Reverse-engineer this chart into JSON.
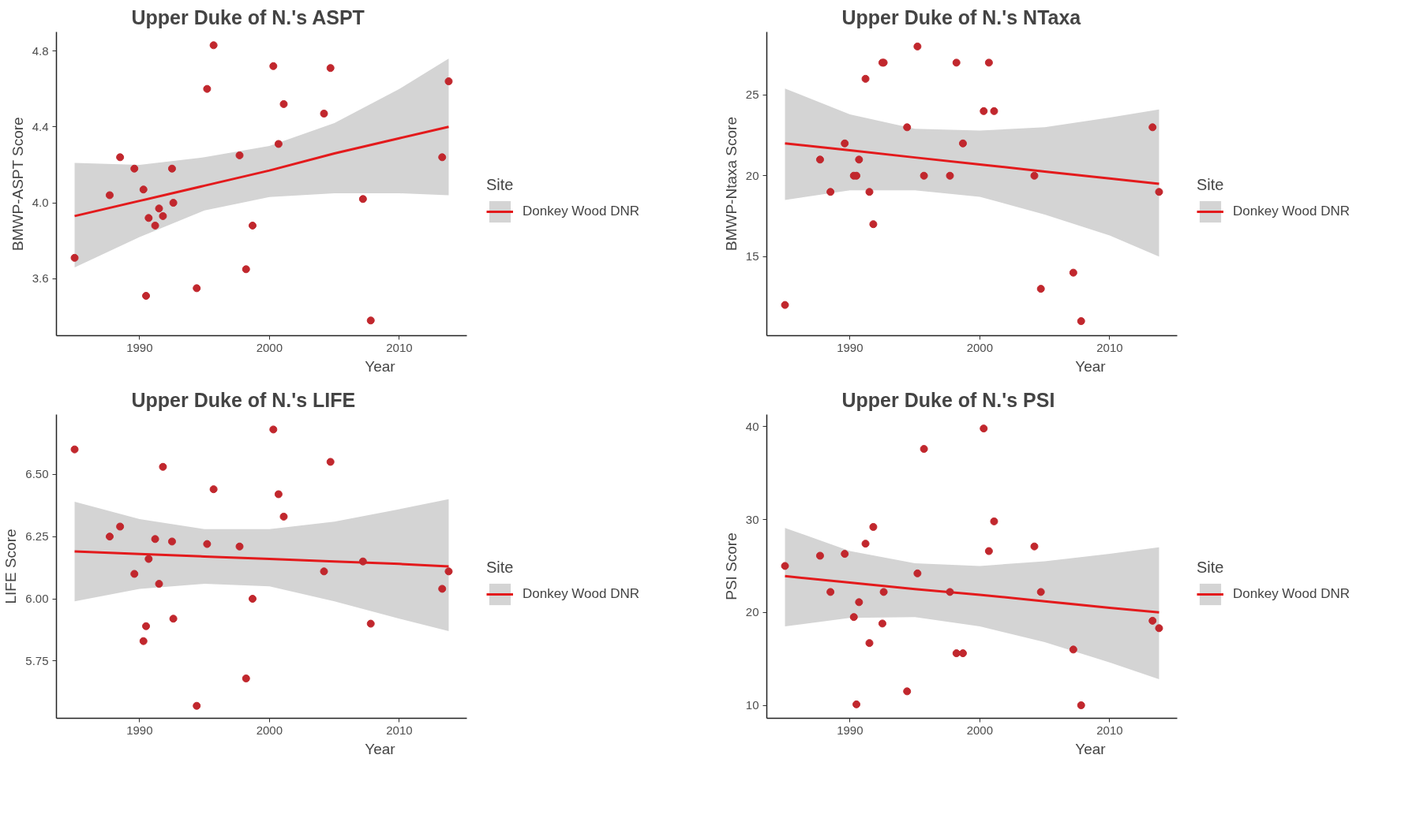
{
  "chart_data": [
    {
      "type": "scatter",
      "title": "Upper Duke of N.'s ASPT",
      "xlabel": "Year",
      "ylabel": "BMWP-ASPT Score",
      "legend_title": "Site",
      "legend": "right",
      "xlim": [
        1983.6,
        2015.2
      ],
      "xticks": [
        1990,
        2000,
        2010
      ],
      "ylim": [
        3.3,
        4.9
      ],
      "yticks": [
        3.6,
        {
          "value": 4.0,
          "label": "4.0"
        },
        4.4,
        4.8
      ],
      "series": [
        {
          "marker": "circle",
          "color": "#c1272d",
          "x": [
            1985.0,
            1987.7,
            1988.5,
            1989.6,
            1990.3,
            1990.5,
            1990.7,
            1991.2,
            1991.5,
            1991.8,
            1992.5,
            1992.6,
            1994.4,
            1995.2,
            1995.7,
            1997.7,
            1998.2,
            1998.7,
            2000.3,
            2000.7,
            2001.1,
            2004.2,
            2004.7,
            2007.2,
            2007.8,
            2013.3,
            2013.8
          ],
          "values": [
            3.71,
            4.04,
            4.24,
            4.18,
            4.07,
            3.51,
            3.92,
            3.88,
            3.97,
            3.93,
            4.18,
            4.0,
            3.55,
            4.6,
            4.83,
            4.25,
            3.65,
            3.88,
            4.72,
            4.31,
            4.52,
            4.47,
            4.71,
            4.02,
            3.38,
            4.24,
            4.64
          ]
        },
        {
          "type": "line",
          "name": "Donkey Wood DNR",
          "color": "#e31a1c",
          "x": [
            1985,
            1990,
            1995,
            2000,
            2005,
            2010,
            2013.8
          ],
          "values": [
            3.93,
            4.01,
            4.09,
            4.17,
            4.26,
            4.34,
            4.4
          ],
          "lower": [
            3.66,
            3.82,
            3.96,
            4.03,
            4.05,
            4.05,
            4.04
          ],
          "upper": [
            4.21,
            4.2,
            4.24,
            4.3,
            4.42,
            4.6,
            4.76
          ]
        }
      ]
    },
    {
      "type": "scatter",
      "title": "Upper Duke of N.'s NTaxa",
      "xlabel": "Year",
      "ylabel": "BMWP-Ntaxa Score",
      "legend_title": "Site",
      "legend": "right",
      "xlim": [
        1983.6,
        2015.2
      ],
      "xticks": [
        1990,
        2000,
        2010
      ],
      "ylim": [
        10.1,
        28.9
      ],
      "yticks": [
        15,
        20,
        25
      ],
      "series": [
        {
          "marker": "circle",
          "color": "#c1272d",
          "x": [
            1985.0,
            1987.7,
            1988.5,
            1989.6,
            1990.3,
            1990.5,
            1990.7,
            1991.2,
            1991.5,
            1991.8,
            1992.5,
            1992.6,
            1994.4,
            1995.2,
            1995.7,
            1997.7,
            1998.2,
            1998.7,
            2000.3,
            2000.7,
            2001.1,
            2004.2,
            2004.7,
            2007.2,
            2007.8,
            2013.3,
            2013.8
          ],
          "values": [
            12,
            21,
            19,
            22,
            20,
            20,
            21,
            26,
            19,
            17,
            27,
            27,
            23,
            28,
            20,
            20,
            27,
            22,
            24,
            27,
            24,
            20,
            13,
            14,
            11,
            23,
            19
          ]
        },
        {
          "type": "line",
          "name": "Donkey Wood DNR",
          "color": "#e31a1c",
          "x": [
            1985,
            1990,
            1995,
            2000,
            2005,
            2010,
            2013.8
          ],
          "values": [
            22.0,
            21.57,
            21.13,
            20.7,
            20.26,
            19.83,
            19.5
          ],
          "lower": [
            18.5,
            19.1,
            19.1,
            18.7,
            17.6,
            16.3,
            15.0
          ],
          "upper": [
            25.4,
            23.8,
            22.9,
            22.8,
            23.0,
            23.6,
            24.1
          ]
        }
      ]
    },
    {
      "type": "scatter",
      "title": "Upper Duke of N.'s LIFE",
      "xlabel": "Year",
      "ylabel": "LIFE Score",
      "legend_title": "Site",
      "legend": "right",
      "xlim": [
        1983.6,
        2015.2
      ],
      "xticks": [
        1990,
        2000,
        2010
      ],
      "ylim": [
        5.52,
        6.74
      ],
      "yticks": [
        5.75,
        {
          "value": 6.0,
          "label": "6.00"
        },
        6.25,
        {
          "value": 6.5,
          "label": "6.50"
        }
      ],
      "series": [
        {
          "marker": "circle",
          "color": "#c1272d",
          "x": [
            1985.0,
            1987.7,
            1988.5,
            1989.6,
            1990.3,
            1990.5,
            1990.7,
            1991.2,
            1991.5,
            1991.8,
            1992.5,
            1992.6,
            1994.4,
            1995.2,
            1995.7,
            1997.7,
            1998.2,
            1998.7,
            2000.3,
            2000.7,
            2001.1,
            2004.2,
            2004.7,
            2007.2,
            2007.8,
            2013.3,
            2013.8
          ],
          "values": [
            6.6,
            6.25,
            6.29,
            6.1,
            5.83,
            5.89,
            6.16,
            6.24,
            6.06,
            6.53,
            6.23,
            5.92,
            5.57,
            6.22,
            6.44,
            6.21,
            5.68,
            6.0,
            6.68,
            6.42,
            6.33,
            6.11,
            6.55,
            6.15,
            5.9,
            6.04,
            6.11
          ]
        },
        {
          "type": "line",
          "name": "Donkey Wood DNR",
          "color": "#e31a1c",
          "x": [
            1985,
            1990,
            1995,
            2000,
            2005,
            2010,
            2013.8
          ],
          "values": [
            6.19,
            6.18,
            6.17,
            6.16,
            6.15,
            6.14,
            6.13
          ],
          "lower": [
            5.99,
            6.04,
            6.06,
            6.05,
            5.99,
            5.92,
            5.87
          ],
          "upper": [
            6.39,
            6.32,
            6.28,
            6.28,
            6.31,
            6.36,
            6.4
          ]
        }
      ]
    },
    {
      "type": "scatter",
      "title": "Upper Duke of N.'s PSI",
      "xlabel": "Year",
      "ylabel": "PSI Score",
      "legend_title": "Site",
      "legend": "right",
      "xlim": [
        1983.6,
        2015.2
      ],
      "xticks": [
        1990,
        2000,
        2010
      ],
      "ylim": [
        8.6,
        41.3
      ],
      "yticks": [
        10,
        20,
        30,
        40
      ],
      "series": [
        {
          "marker": "circle",
          "color": "#c1272d",
          "x": [
            1985.0,
            1987.7,
            1988.5,
            1989.6,
            1990.3,
            1990.5,
            1990.7,
            1991.2,
            1991.5,
            1991.8,
            1992.5,
            1992.6,
            1994.4,
            1995.2,
            1995.7,
            1997.7,
            1998.2,
            1998.7,
            2000.3,
            2000.7,
            2001.1,
            2004.2,
            2004.7,
            2007.2,
            2007.8,
            2013.3,
            2013.8
          ],
          "values": [
            25.0,
            26.1,
            22.2,
            26.3,
            19.5,
            10.1,
            21.1,
            27.4,
            16.7,
            29.2,
            18.8,
            22.2,
            11.5,
            24.2,
            37.6,
            22.2,
            15.6,
            15.6,
            39.8,
            26.6,
            29.8,
            27.1,
            22.2,
            16.0,
            10.0,
            19.1,
            18.3
          ]
        },
        {
          "type": "line",
          "name": "Donkey Wood DNR",
          "color": "#e31a1c",
          "x": [
            1985,
            1990,
            1995,
            2000,
            2005,
            2010,
            2013.8
          ],
          "values": [
            23.9,
            23.2,
            22.5,
            21.9,
            21.2,
            20.5,
            20.0
          ],
          "lower": [
            18.5,
            19.4,
            19.5,
            18.5,
            16.8,
            14.6,
            12.8
          ],
          "upper": [
            29.1,
            26.6,
            25.3,
            25.0,
            25.5,
            26.3,
            27.0
          ]
        }
      ]
    }
  ]
}
